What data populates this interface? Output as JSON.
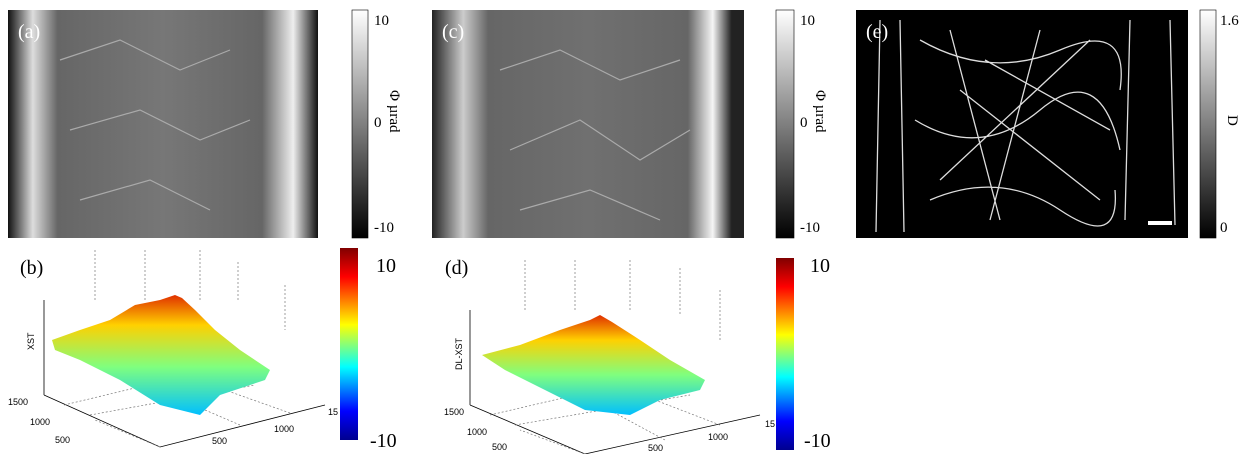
{
  "panels": [
    {
      "label": "(a)",
      "colorbar": {
        "title": "Φ µrad",
        "ticks": [
          10,
          0,
          -10
        ]
      }
    },
    {
      "label": "(b)",
      "axis_label": "XST",
      "colorbar": {
        "ticks": [
          10,
          -10
        ]
      },
      "y_ticks": [
        1500,
        1000,
        500
      ],
      "x_ticks": [
        500,
        1000,
        15
      ]
    },
    {
      "label": "(c)",
      "colorbar": {
        "title": "Φ µrad",
        "ticks": [
          10,
          0,
          -10
        ]
      }
    },
    {
      "label": "(d)",
      "axis_label": "DL-XST",
      "colorbar": {
        "ticks": [
          10,
          -10
        ]
      },
      "y_ticks": [
        1500,
        1000,
        500
      ],
      "x_ticks": [
        500,
        1000,
        15
      ]
    },
    {
      "label": "(e)",
      "colorbar": {
        "title": "D",
        "ticks": [
          1.6,
          0
        ]
      }
    }
  ]
}
